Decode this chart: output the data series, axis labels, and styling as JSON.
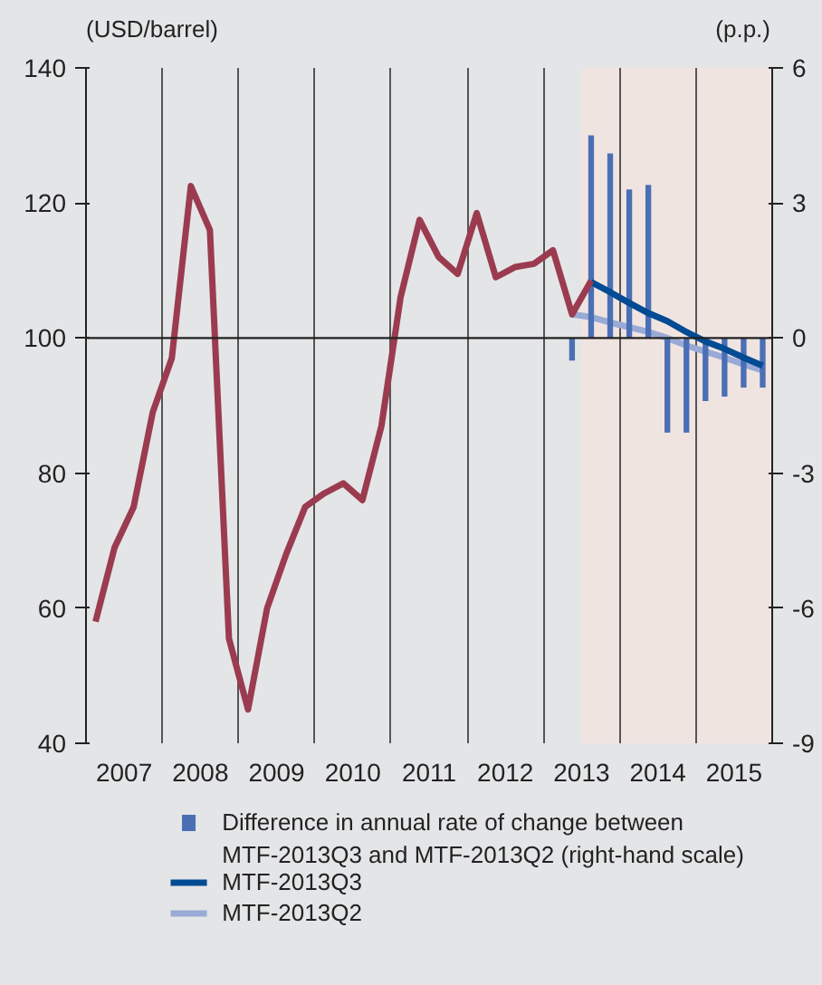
{
  "chart_data": {
    "type": "line",
    "ylabel": "(USD/barrel)",
    "y2label": "(p.p.)",
    "xlim": [
      2007,
      2016
    ],
    "xticks": [
      {
        "value": 2007.5,
        "label": "2007"
      },
      {
        "value": 2008.5,
        "label": "2008"
      },
      {
        "value": 2009.5,
        "label": "2009"
      },
      {
        "value": 2010.5,
        "label": "2010"
      },
      {
        "value": 2011.5,
        "label": "2011"
      },
      {
        "value": 2012.5,
        "label": "2012"
      },
      {
        "value": 2013.5,
        "label": "2013"
      },
      {
        "value": 2014.5,
        "label": "2014"
      },
      {
        "value": 2015.5,
        "label": "2015"
      },
      {
        "value": 2008,
        "label": null
      },
      {
        "value": 2009,
        "label": null
      },
      {
        "value": 2010,
        "label": null
      },
      {
        "value": 2011,
        "label": null
      },
      {
        "value": 2012,
        "label": null
      },
      {
        "value": 2013,
        "label": null
      },
      {
        "value": 2014,
        "label": null
      },
      {
        "value": 2015,
        "label": null
      }
    ],
    "ylim": [
      40,
      140
    ],
    "yticks": [
      40,
      60,
      80,
      100,
      120,
      140
    ],
    "y2lim": [
      -9,
      6
    ],
    "y2ticks": [
      -9,
      -6,
      -3,
      0,
      3,
      6
    ],
    "grid": "x",
    "legend": "bottom",
    "bands": [
      {
        "axis": "x",
        "from": 2013.5,
        "to": 2016,
        "color": "#f0e4e1"
      }
    ],
    "ref_lines": [
      {
        "axis": "y",
        "value": 100,
        "color": "#222222"
      }
    ],
    "series": [
      {
        "name": "MTF-2013Q2",
        "color": "#9aaad6",
        "x": [
          2013.375,
          2013.625,
          2013.875,
          2014.125,
          2014.375,
          2014.625,
          2014.875,
          2015.125,
          2015.375,
          2015.625,
          2015.875
        ],
        "values": [
          103.5,
          103.1,
          102.3,
          101.6,
          100.9,
          100,
          98.9,
          98.0,
          97.1,
          96.1,
          95.2
        ]
      },
      {
        "name": "Difference in annual rate of change between MTF-2013Q3 and MTF-2013Q2 (right-hand scale)",
        "type": "bar",
        "axis": "y2",
        "color": "#4a6fb5",
        "x": [
          2013.375,
          2013.625,
          2013.875,
          2014.125,
          2014.375,
          2014.625,
          2014.875,
          2015.125,
          2015.375,
          2015.625,
          2015.875
        ],
        "values": [
          -0.5,
          4.5,
          4.1,
          3.3,
          3.4,
          -2.1,
          -2.1,
          -1.4,
          -1.3,
          -1.1,
          -1.1
        ]
      },
      {
        "name": "MTF-2013Q3",
        "color": "#004b93",
        "x": [
          2013.625,
          2013.875,
          2014.125,
          2014.375,
          2014.625,
          2014.875,
          2015.125,
          2015.375,
          2015.625,
          2015.875
        ],
        "values": [
          108.3,
          106.8,
          105.2,
          103.7,
          102.5,
          100.9,
          99.5,
          98.4,
          97.1,
          95.9
        ]
      },
      {
        "color": "#9b3b50",
        "x": [
          2007.125,
          2007.375,
          2007.625,
          2007.875,
          2008.125,
          2008.375,
          2008.625,
          2008.875,
          2009.125,
          2009.375,
          2009.625,
          2009.875,
          2010.125,
          2010.375,
          2010.625,
          2010.875,
          2011.125,
          2011.375,
          2011.625,
          2011.875,
          2012.125,
          2012.375,
          2012.625,
          2012.875,
          2013.125,
          2013.375,
          2013.625
        ],
        "values": [
          58,
          69,
          75,
          89,
          97,
          122.5,
          116,
          55.5,
          45,
          60,
          68,
          75,
          77,
          78.5,
          76,
          87,
          106,
          117.5,
          112,
          109.5,
          118.5,
          109,
          110.5,
          111,
          113,
          103.5,
          108.5
        ]
      }
    ]
  }
}
